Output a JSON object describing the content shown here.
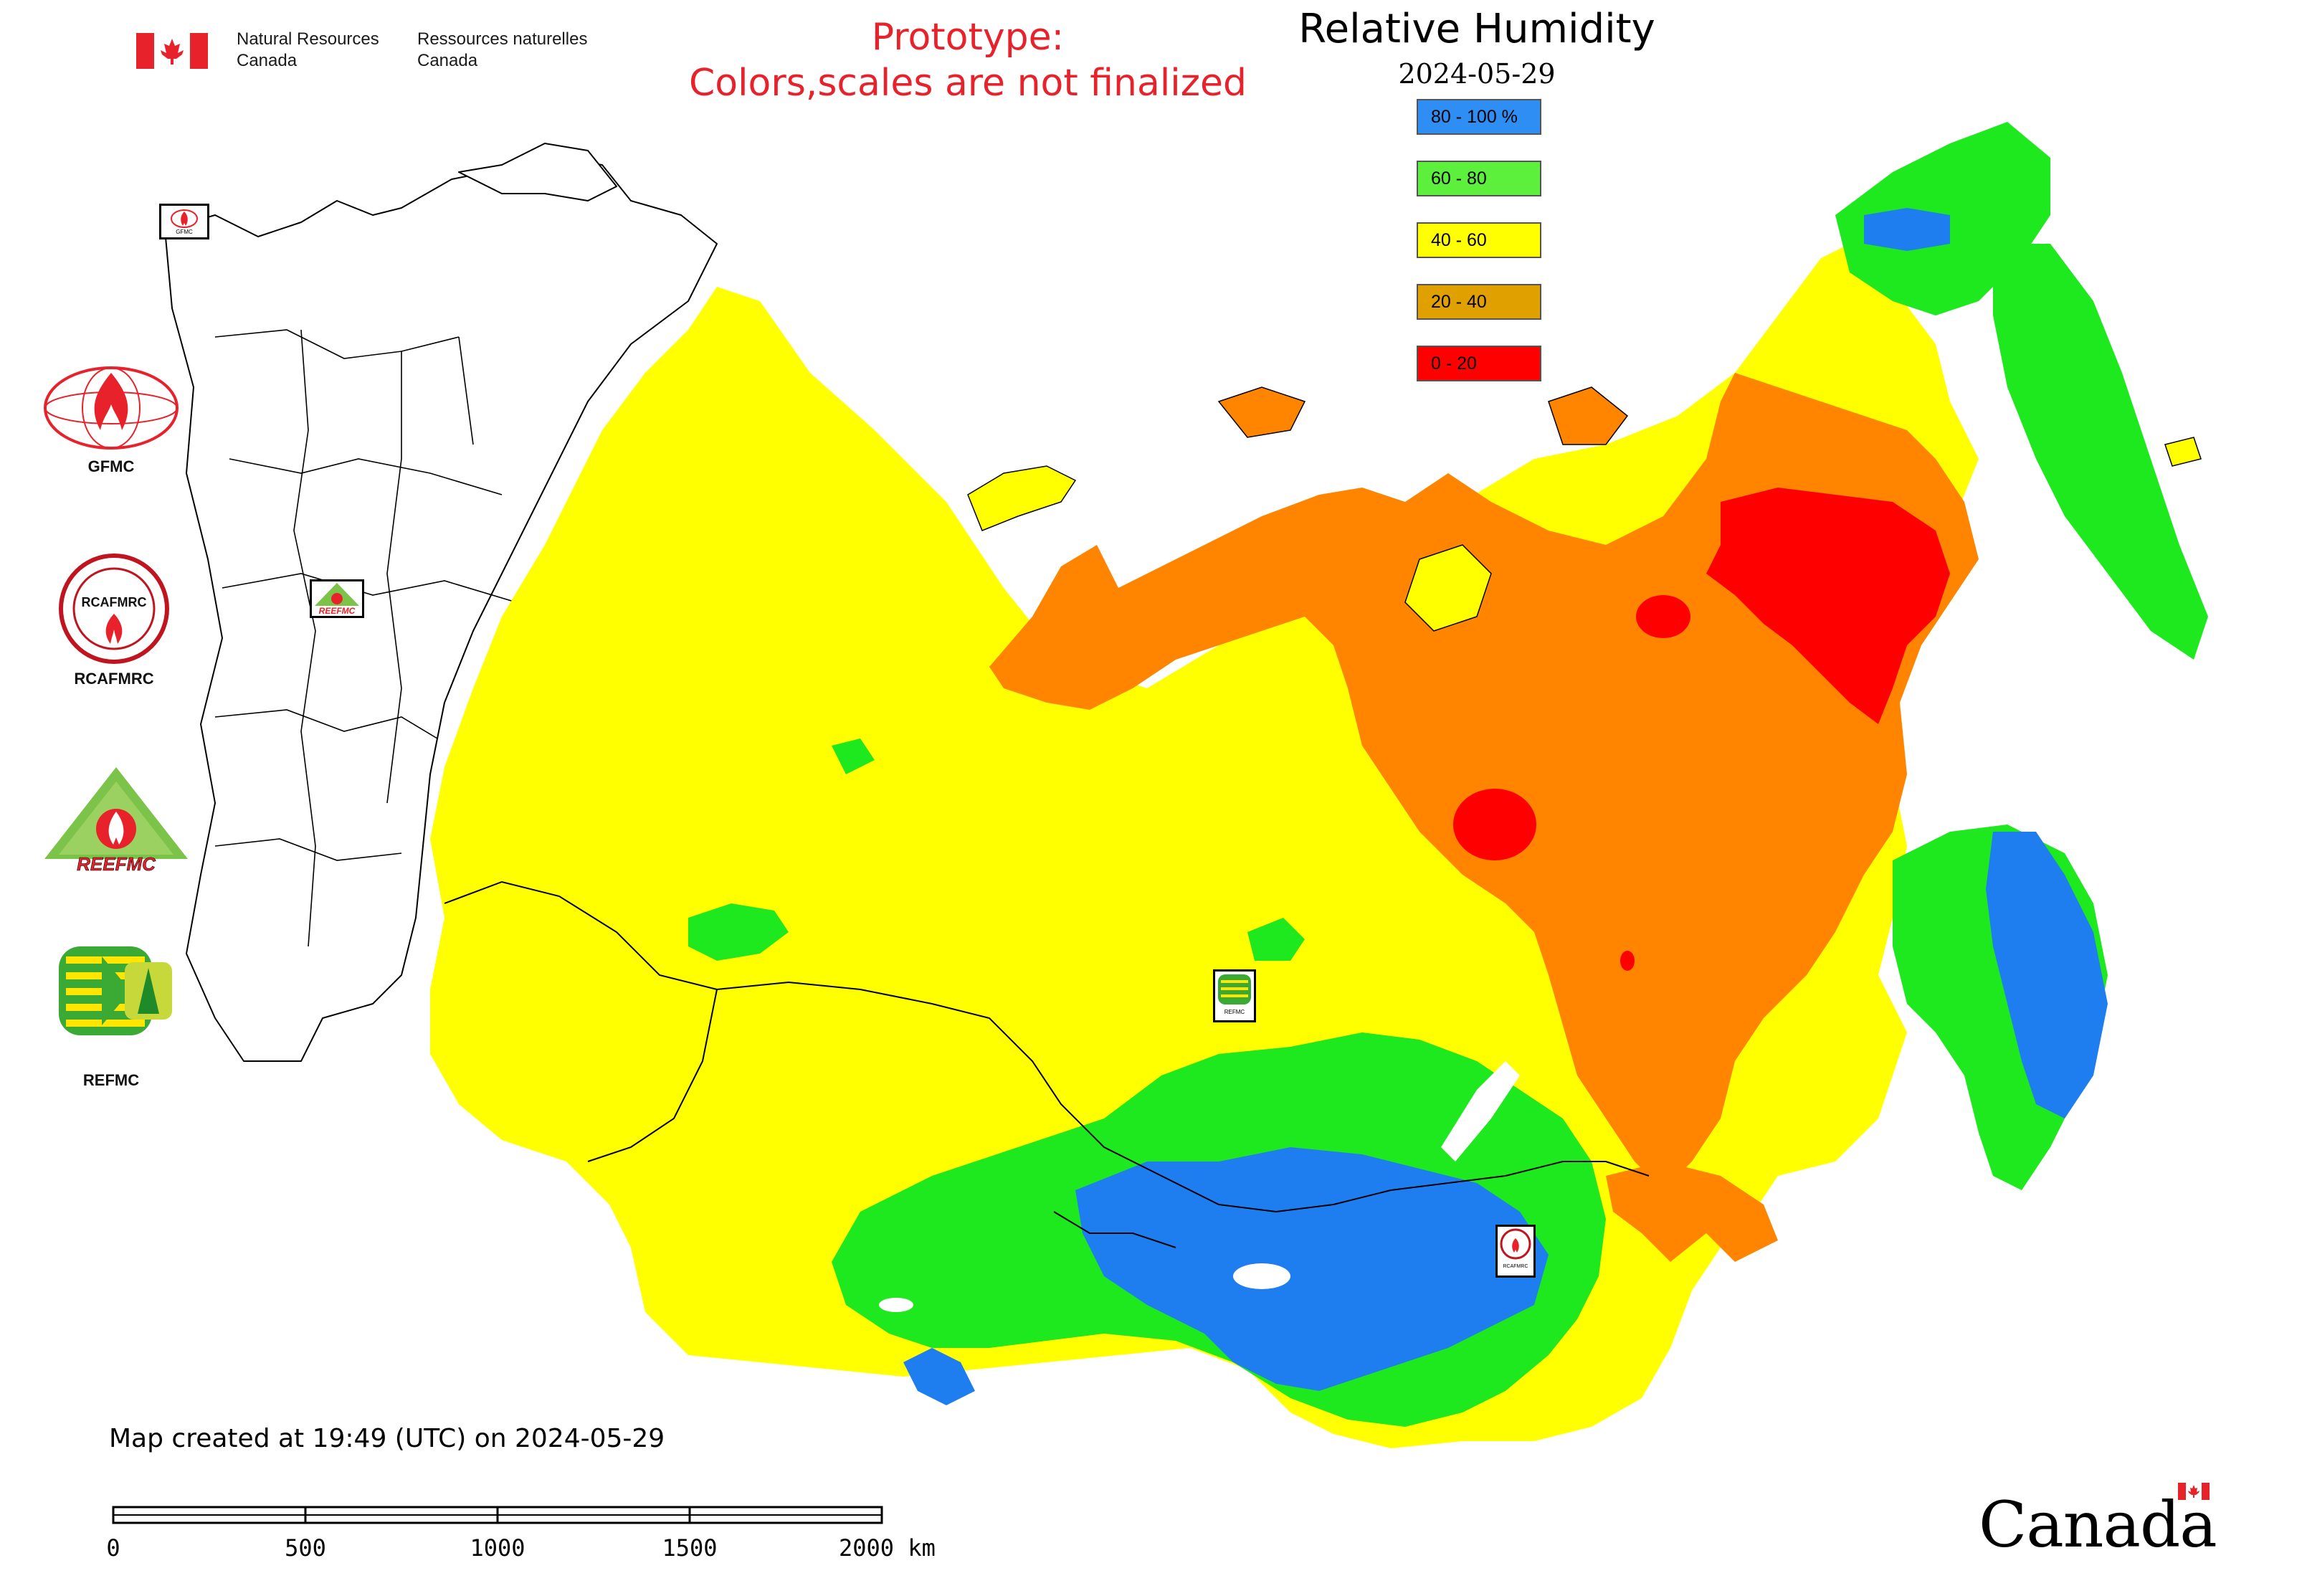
{
  "header": {
    "dept_en_line1": "Natural Resources",
    "dept_en_line2": "Canada",
    "dept_fr_line1": "Ressources naturelles",
    "dept_fr_line2": "Canada",
    "flag_icon": "canada-flag-icon"
  },
  "warning": {
    "line1": "Prototype:",
    "line2": "Colors,scales are not finalized",
    "color": "#e8222b"
  },
  "legend": {
    "title": "Relative Humidity",
    "date": "2024-05-29",
    "items": [
      {
        "label": "80 - 100 %",
        "color": "#2f8ef4"
      },
      {
        "label": "60 - 80",
        "color": "#5cf03c"
      },
      {
        "label": "40 - 60",
        "color": "#ffff00"
      },
      {
        "label": "20 - 40",
        "color": "#e0a000"
      },
      {
        "label": "0 - 20",
        "color": "#ff0000"
      }
    ]
  },
  "map_colors": {
    "blue": "#1e7ef0",
    "green": "#1ee81e",
    "yellow": "#ffff00",
    "orange": "#ff8400",
    "red": "#ff0000",
    "border": "#000000"
  },
  "logos": [
    {
      "name": "gfmc-logo",
      "caption": "GFMC"
    },
    {
      "name": "rcafmrc-logo",
      "caption": "RCAFMRC",
      "seal_text": "RCAFMRC"
    },
    {
      "name": "reefmc-logo",
      "caption": "",
      "wordmark": "REEFMC"
    },
    {
      "name": "refmc-logo",
      "caption": "REFMC"
    }
  ],
  "map_markers": [
    {
      "name": "gfmc-map-marker",
      "text": "GFMC"
    },
    {
      "name": "reefmc-map-marker",
      "text": "REEFMC"
    },
    {
      "name": "refmc-map-marker",
      "text": "REFMC"
    },
    {
      "name": "rcafmrc-map-marker",
      "text": "RCAFMRC"
    }
  ],
  "footer": {
    "created": "Map created at 19:49 (UTC) on 2024-05-29",
    "scale_labels": [
      "0",
      "500",
      "1000",
      "1500",
      "2000 km"
    ],
    "canada_wordmark": "Canada"
  }
}
